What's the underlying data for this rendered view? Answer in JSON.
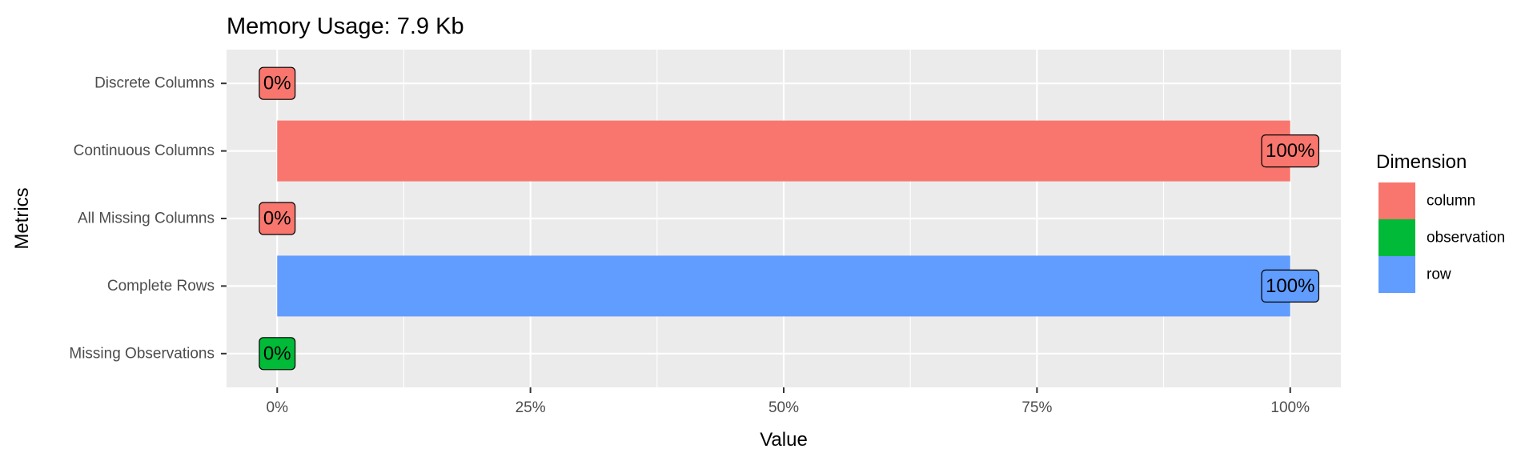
{
  "chart_data": {
    "type": "bar",
    "orientation": "horizontal",
    "title": "Memory Usage: 7.9 Kb",
    "xlabel": "Value",
    "ylabel": "Metrics",
    "xlim": [
      -0.05,
      1.05
    ],
    "x_ticks": [
      0,
      0.25,
      0.5,
      0.75,
      1.0
    ],
    "x_tick_labels": [
      "0%",
      "25%",
      "50%",
      "75%",
      "100%"
    ],
    "grid": true,
    "legend_placement": "right",
    "legend": {
      "title": "Dimension",
      "entries": [
        {
          "label": "column",
          "color": "#F8766D"
        },
        {
          "label": "observation",
          "color": "#00BA38"
        },
        {
          "label": "row",
          "color": "#619CFF"
        }
      ]
    },
    "bars": [
      {
        "metric": "Discrete Columns",
        "value": 0,
        "label": "0%",
        "dimension": "column"
      },
      {
        "metric": "Continuous Columns",
        "value": 1,
        "label": "100%",
        "dimension": "column"
      },
      {
        "metric": "All Missing Columns",
        "value": 0,
        "label": "0%",
        "dimension": "column"
      },
      {
        "metric": "Complete Rows",
        "value": 1,
        "label": "100%",
        "dimension": "row"
      },
      {
        "metric": "Missing Observations",
        "value": 0,
        "label": "0%",
        "dimension": "observation"
      }
    ]
  }
}
